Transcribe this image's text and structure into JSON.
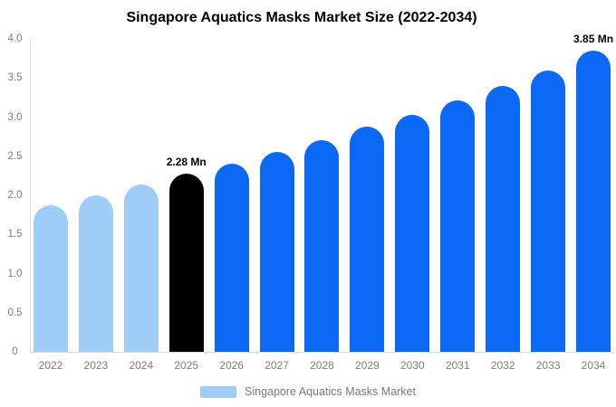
{
  "chart_data": {
    "type": "bar",
    "title": "Singapore Aquatics Masks Market Size (2022-2034)",
    "categories": [
      "2022",
      "2023",
      "2024",
      "2025",
      "2026",
      "2027",
      "2028",
      "2029",
      "2030",
      "2031",
      "2032",
      "2033",
      "2034"
    ],
    "values": [
      1.87,
      2.0,
      2.14,
      2.28,
      2.4,
      2.55,
      2.71,
      2.88,
      3.03,
      3.21,
      3.4,
      3.6,
      3.85
    ],
    "ylim": [
      0,
      4
    ],
    "y_ticks": [
      "4.0",
      "3.5",
      "3.0",
      "2.5",
      "2.0",
      "1.5",
      "1.0",
      "0.5",
      "0"
    ],
    "xlabel": "",
    "ylabel": "",
    "grid": false,
    "bar_color_keys": [
      "historical",
      "historical",
      "historical",
      "highlight",
      "forecast",
      "forecast",
      "forecast",
      "forecast",
      "forecast",
      "forecast",
      "forecast",
      "forecast",
      "forecast"
    ],
    "palette": {
      "historical": "#9ECDF8",
      "highlight": "#000000",
      "forecast": "#0B69F5"
    },
    "data_labels": [
      {
        "category": "2025",
        "text": "2.28 Mn"
      },
      {
        "category": "2034",
        "text": "3.85 Mn"
      }
    ],
    "legend": [
      {
        "label": "Singapore Aquatics Masks Market",
        "color": "#9ECDF8"
      }
    ],
    "legend_position": "bottom",
    "axis_line_color": "#DCDCDC",
    "tick_label_color": "#7F7F7F"
  }
}
